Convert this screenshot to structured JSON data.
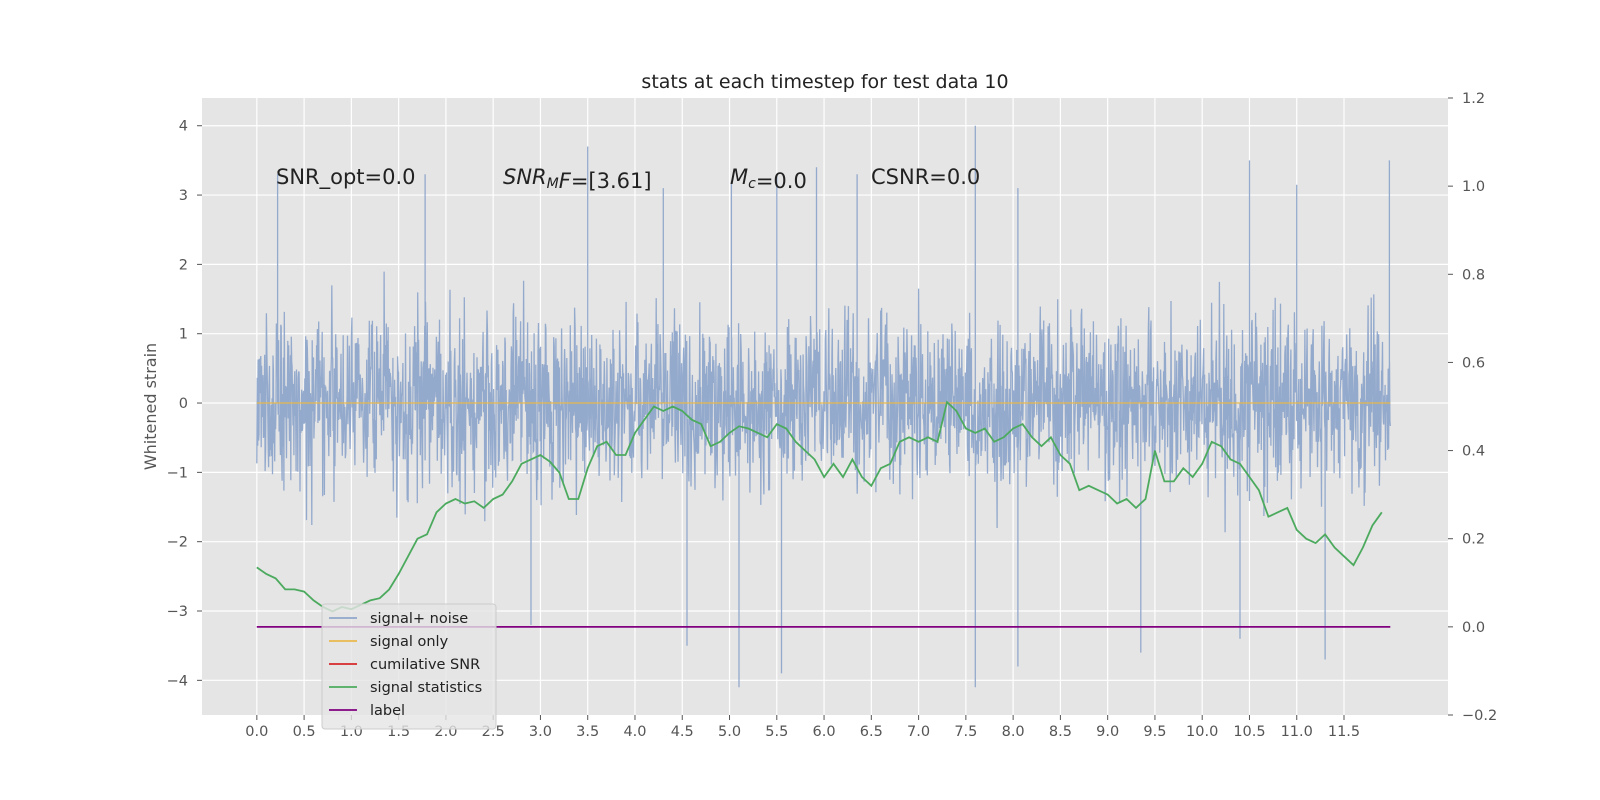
{
  "chart_data": {
    "type": "line",
    "title": "stats at each timestep for test data 10",
    "xlabel": "",
    "ylabel": "Whitened strain",
    "xlim": [
      -0.58,
      12.6
    ],
    "ylim": [
      -4.5,
      4.4
    ],
    "y2lim": [
      -0.2,
      1.2
    ],
    "grid": true,
    "legend_placement": "lower-left",
    "x_ticks": [
      0.0,
      0.5,
      1.0,
      1.5,
      2.0,
      2.5,
      3.0,
      3.5,
      4.0,
      4.5,
      5.0,
      5.5,
      6.0,
      6.5,
      7.0,
      7.5,
      8.0,
      8.5,
      9.0,
      9.5,
      10.0,
      10.5,
      11.0,
      11.5
    ],
    "x_tick_labels": [
      "0.0",
      "0.5",
      "1.0",
      "1.5",
      "2.0",
      "2.5",
      "3.0",
      "3.5",
      "4.0",
      "4.5",
      "5.0",
      "5.5",
      "6.0",
      "6.5",
      "7.0",
      "7.5",
      "8.0",
      "8.5",
      "9.0",
      "9.5",
      "10.0",
      "10.5",
      "11.0",
      "11.5"
    ],
    "y_ticks": [
      -4,
      -3,
      -2,
      -1,
      0,
      1,
      2,
      3,
      4
    ],
    "y_tick_labels": [
      "−4",
      "−3",
      "−2",
      "−1",
      "0",
      "1",
      "2",
      "3",
      "4"
    ],
    "y2_ticks": [
      -0.2,
      0.0,
      0.2,
      0.4,
      0.6,
      0.8,
      1.0,
      1.2
    ],
    "y2_tick_labels": [
      "−0.2",
      "0.0",
      "0.2",
      "0.4",
      "0.6",
      "0.8",
      "1.0",
      "1.2"
    ],
    "annotations": [
      {
        "parts": [
          {
            "text": "SNR_opt=0.0",
            "italic": false
          }
        ]
      },
      {
        "parts": [
          {
            "text": "SNR",
            "italic": true
          },
          {
            "text": "M",
            "italic": true,
            "sub": true
          },
          {
            "text": "F",
            "italic": true
          },
          {
            "text": "=[3.61]",
            "italic": false
          }
        ]
      },
      {
        "parts": [
          {
            "text": "M",
            "italic": true
          },
          {
            "text": "c",
            "italic": true,
            "sub": true
          },
          {
            "text": "=0.0",
            "italic": false
          }
        ]
      },
      {
        "parts": [
          {
            "text": "CSNR=0.0",
            "italic": false
          }
        ]
      }
    ],
    "series": [
      {
        "name": "signal+ noise",
        "axis": "left",
        "color": "#8fa6cb",
        "style": "noise",
        "x_range": [
          0.0,
          11.99
        ],
        "envelope_typical": [
          -2.0,
          2.0
        ],
        "notable_peaks": [
          {
            "x": 0.22,
            "y": 3.3
          },
          {
            "x": 1.78,
            "y": 3.3
          },
          {
            "x": 3.5,
            "y": 3.7
          },
          {
            "x": 4.3,
            "y": 3.1
          },
          {
            "x": 5.02,
            "y": 3.2
          },
          {
            "x": 5.5,
            "y": 3.3
          },
          {
            "x": 5.92,
            "y": 3.4
          },
          {
            "x": 6.35,
            "y": 3.3
          },
          {
            "x": 7.6,
            "y": 4.0
          },
          {
            "x": 8.05,
            "y": 3.1
          },
          {
            "x": 10.5,
            "y": 3.5
          },
          {
            "x": 11.0,
            "y": 3.15
          },
          {
            "x": 11.98,
            "y": 3.5
          },
          {
            "x": 5.1,
            "y": -4.1
          },
          {
            "x": 5.55,
            "y": -3.9
          },
          {
            "x": 7.6,
            "y": -4.1
          },
          {
            "x": 8.05,
            "y": -3.8
          },
          {
            "x": 9.35,
            "y": -3.6
          },
          {
            "x": 10.4,
            "y": -3.4
          },
          {
            "x": 11.3,
            "y": -3.7
          },
          {
            "x": 4.55,
            "y": -3.5
          },
          {
            "x": 2.9,
            "y": -3.2
          }
        ]
      },
      {
        "name": "signal only",
        "axis": "left",
        "color": "#e8b84d",
        "x": [
          0.0,
          11.99
        ],
        "y": [
          0.0,
          0.0
        ]
      },
      {
        "name": "cumilative SNR",
        "axis": "left",
        "color": "#d62728",
        "x": [],
        "y": []
      },
      {
        "name": "signal statistics",
        "axis": "right",
        "color": "#4caa5e",
        "x": [
          0.0,
          0.1,
          0.2,
          0.3,
          0.4,
          0.5,
          0.6,
          0.7,
          0.8,
          0.9,
          1.0,
          1.1,
          1.2,
          1.3,
          1.4,
          1.5,
          1.6,
          1.7,
          1.8,
          1.9,
          2.0,
          2.1,
          2.2,
          2.3,
          2.4,
          2.5,
          2.6,
          2.7,
          2.8,
          2.9,
          3.0,
          3.1,
          3.2,
          3.3,
          3.4,
          3.5,
          3.6,
          3.7,
          3.8,
          3.9,
          4.0,
          4.1,
          4.2,
          4.3,
          4.4,
          4.5,
          4.6,
          4.7,
          4.8,
          4.9,
          5.0,
          5.1,
          5.2,
          5.3,
          5.4,
          5.5,
          5.6,
          5.7,
          5.8,
          5.9,
          6.0,
          6.1,
          6.2,
          6.3,
          6.4,
          6.5,
          6.6,
          6.7,
          6.8,
          6.9,
          7.0,
          7.1,
          7.2,
          7.3,
          7.4,
          7.5,
          7.6,
          7.7,
          7.8,
          7.9,
          8.0,
          8.1,
          8.2,
          8.3,
          8.4,
          8.5,
          8.6,
          8.7,
          8.8,
          8.9,
          9.0,
          9.1,
          9.2,
          9.3,
          9.4,
          9.5,
          9.6,
          9.7,
          9.8,
          9.9,
          10.0,
          10.1,
          10.2,
          10.3,
          10.4,
          10.5,
          10.6,
          10.7,
          10.8,
          10.9,
          11.0,
          11.1,
          11.2,
          11.3,
          11.4,
          11.5,
          11.6,
          11.7,
          11.8,
          11.9
        ],
        "y": [
          0.135,
          0.12,
          0.11,
          0.085,
          0.085,
          0.08,
          0.06,
          0.045,
          0.035,
          0.045,
          0.04,
          0.05,
          0.06,
          0.065,
          0.085,
          0.12,
          0.16,
          0.2,
          0.21,
          0.26,
          0.28,
          0.29,
          0.28,
          0.285,
          0.27,
          0.29,
          0.3,
          0.33,
          0.37,
          0.38,
          0.39,
          0.375,
          0.35,
          0.29,
          0.29,
          0.36,
          0.41,
          0.42,
          0.39,
          0.39,
          0.44,
          0.47,
          0.5,
          0.49,
          0.5,
          0.49,
          0.47,
          0.46,
          0.41,
          0.42,
          0.44,
          0.455,
          0.45,
          0.44,
          0.43,
          0.46,
          0.45,
          0.42,
          0.4,
          0.38,
          0.34,
          0.37,
          0.34,
          0.38,
          0.34,
          0.32,
          0.36,
          0.37,
          0.42,
          0.43,
          0.42,
          0.43,
          0.42,
          0.51,
          0.49,
          0.45,
          0.44,
          0.45,
          0.42,
          0.43,
          0.45,
          0.46,
          0.43,
          0.41,
          0.43,
          0.39,
          0.37,
          0.31,
          0.32,
          0.31,
          0.3,
          0.28,
          0.29,
          0.27,
          0.29,
          0.4,
          0.33,
          0.33,
          0.36,
          0.34,
          0.37,
          0.42,
          0.41,
          0.38,
          0.37,
          0.34,
          0.31,
          0.25,
          0.26,
          0.27,
          0.22,
          0.2,
          0.19,
          0.21,
          0.18,
          0.16,
          0.14,
          0.18,
          0.23,
          0.26
        ]
      },
      {
        "name": "label",
        "axis": "right",
        "color": "#800080",
        "x": [
          0.0,
          11.99
        ],
        "y": [
          0.0,
          0.0
        ]
      }
    ],
    "legend_entries": [
      {
        "label": "signal+ noise",
        "color": "#8fa6cb"
      },
      {
        "label": "signal only",
        "color": "#e8b84d"
      },
      {
        "label": "cumilative SNR",
        "color": "#d62728"
      },
      {
        "label": "signal statistics",
        "color": "#4caa5e"
      },
      {
        "label": "label",
        "color": "#800080"
      }
    ]
  }
}
